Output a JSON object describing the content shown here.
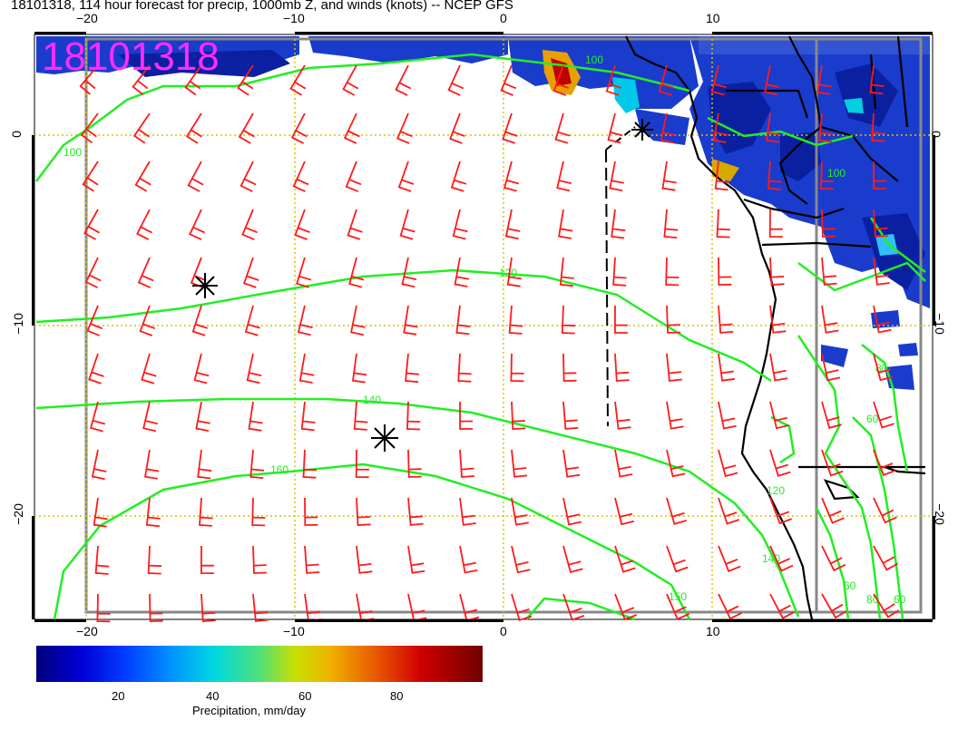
{
  "title": "18101318, 114 hour forecast for precip, 1000mb Z, and winds (knots) -- NCEP GFS",
  "stamp": "18101318",
  "axes": {
    "top_x": [
      "−20",
      "−10",
      "0",
      "10"
    ],
    "bottom_x": [
      "−20",
      "−10",
      "0",
      "10"
    ],
    "left_y": [
      "0",
      "−10",
      "−20"
    ],
    "right_y": [
      "0",
      "−10",
      "−20"
    ]
  },
  "contours": {
    "l100a": "100",
    "l100b": "100",
    "l100c": "100",
    "l120a": "120",
    "l120b": "120",
    "l140a": "140",
    "l140b": "140",
    "l150": "150",
    "l160": "160",
    "l80a": "80",
    "l80b": "80",
    "l60a": "60",
    "l60b": "60",
    "l60c": "60"
  },
  "colorbar": {
    "ticks": [
      "20",
      "40",
      "60",
      "80"
    ],
    "label": "Precipitation, mm/day"
  },
  "colors": {
    "wind": "#ff1a1a",
    "contour": "#22ee22",
    "grid": "#d8c400",
    "stamp": "#ff2bff"
  }
}
